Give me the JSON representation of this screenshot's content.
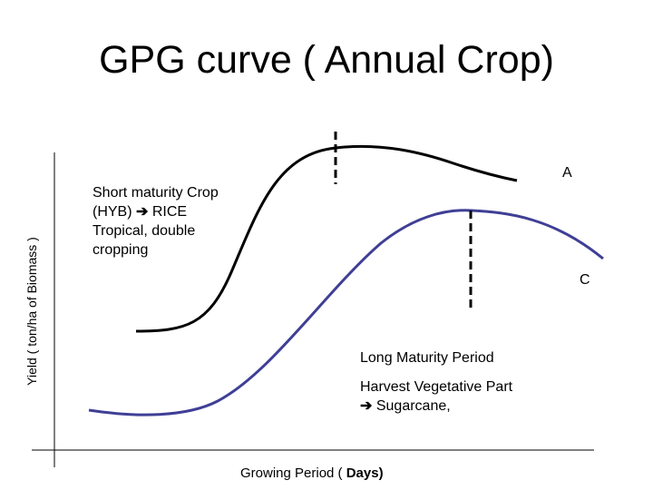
{
  "title": "GPG curve ( Annual Crop)",
  "axes": {
    "y_label": "Yield ( ton/ha of Biomass )",
    "x_label_prefix": "Growing Period ( ",
    "x_label_bold": "Days)"
  },
  "curves": [
    {
      "id": "A",
      "label": "A",
      "color": "#000000"
    },
    {
      "id": "C",
      "label": "C",
      "color": "#3f3f96"
    }
  ],
  "annotations": {
    "short_maturity": {
      "line1": "Short maturity Crop",
      "line2_prefix": "(HYB) ",
      "arrow": "➔",
      "line2_suffix": " RICE",
      "line3": "Tropical, double",
      "line4": "cropping"
    },
    "long_maturity": {
      "line1": "Long Maturity Period",
      "line2": "Harvest Vegetative Part",
      "arrow": "➔",
      "line3_suffix": " Sugarcane,"
    }
  }
}
